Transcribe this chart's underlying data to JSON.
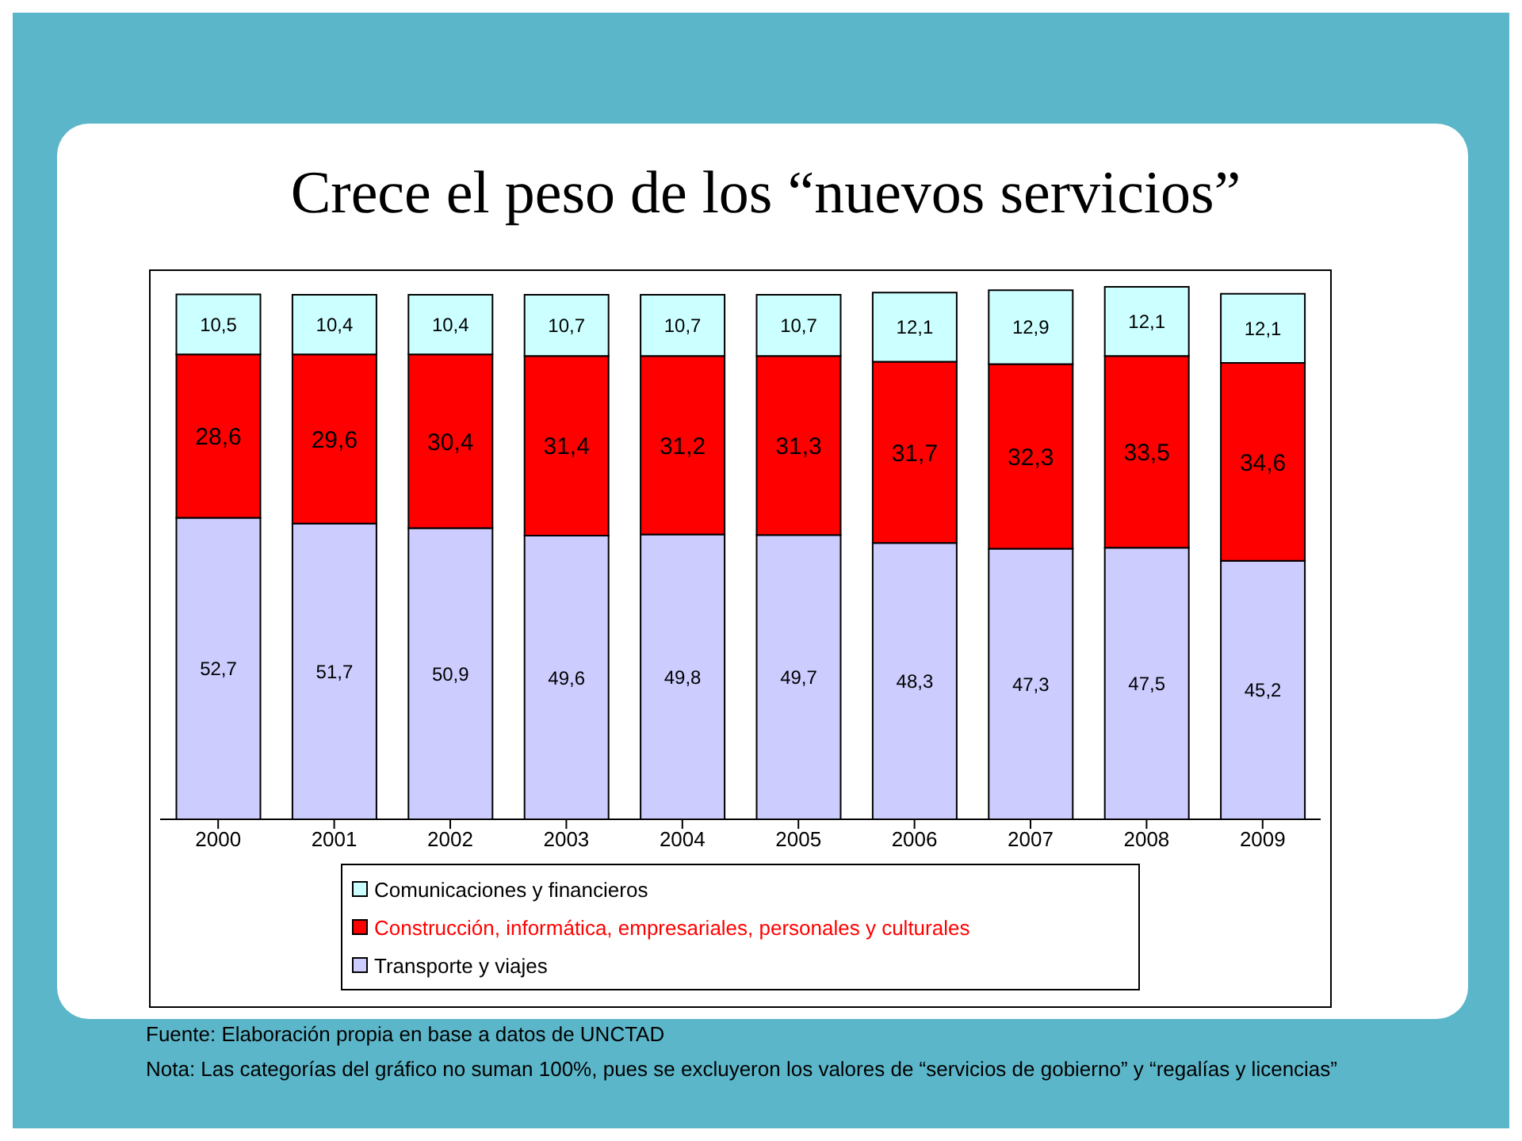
{
  "chart_data": {
    "type": "bar",
    "title": "Crece el peso de los “nuevos servicios”",
    "categories": [
      "2000",
      "2001",
      "2002",
      "2003",
      "2004",
      "2005",
      "2006",
      "2007",
      "2008",
      "2009"
    ],
    "stacked": true,
    "legend": "bottom",
    "grid": false,
    "series": [
      {
        "name": "Transporte y viajes",
        "color": "#ccccff",
        "values": [
          52.7,
          51.7,
          50.9,
          49.6,
          49.8,
          49.7,
          48.3,
          47.3,
          47.5,
          45.2
        ],
        "value_labels": [
          "52,7",
          "51,7",
          "50,9",
          "49,6",
          "49,8",
          "49,7",
          "48,3",
          "47,3",
          "47,5",
          "45,2"
        ]
      },
      {
        "name": "Construcción, informática, empresariales, personales y culturales",
        "color": "#ff0000",
        "values": [
          28.6,
          29.6,
          30.4,
          31.4,
          31.2,
          31.3,
          31.7,
          32.3,
          33.5,
          34.6
        ],
        "value_labels": [
          "28,6",
          "29,6",
          "30,4",
          "31,4",
          "31,2",
          "31,3",
          "31,7",
          "32,3",
          "33,5",
          "34,6"
        ]
      },
      {
        "name": "Comunicaciones y financieros",
        "color": "#ccffff",
        "values": [
          10.5,
          10.4,
          10.4,
          10.7,
          10.7,
          10.7,
          12.1,
          12.9,
          12.1,
          12.1
        ],
        "value_labels": [
          "10,5",
          "10,4",
          "10,4",
          "10,7",
          "10,7",
          "10,7",
          "12,1",
          "12,9",
          "12,1",
          "12,1"
        ]
      }
    ],
    "annotations": [
      "Fuente: Elaboración propia en base a datos de UNCTAD",
      "Nota: Las categorías del gráfico no suman 100%, pues se excluyeron los valores de “servicios de gobierno” y “regalías y licencias”"
    ]
  }
}
